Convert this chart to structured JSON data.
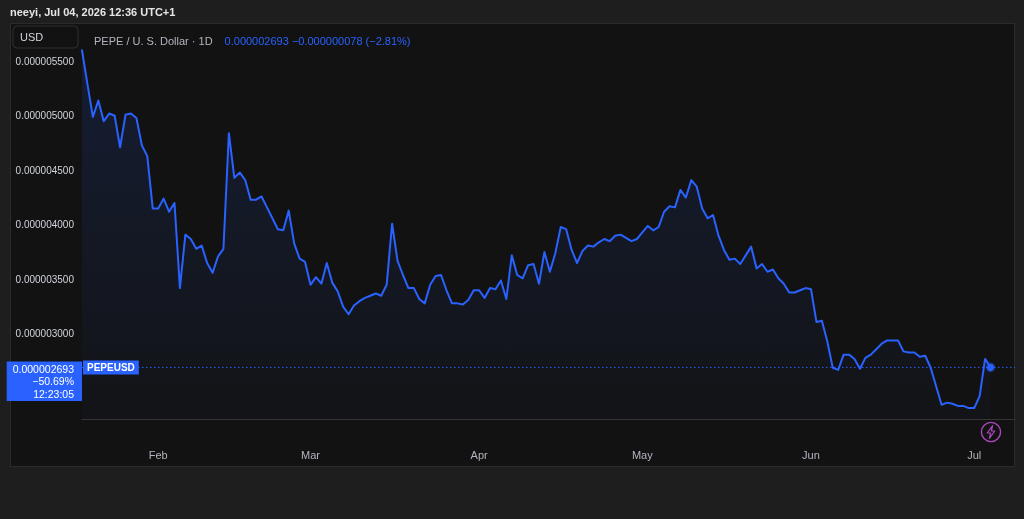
{
  "chart_data": {
    "type": "area",
    "title": "PEPE / U. S. Dollar · 1D",
    "subtitle": "0.000002693 −0.000000078 (−2.81%)",
    "ylabel": "USD",
    "annotations": [
      "neeyi, Jul 04, 2026 12:36 UTC+1",
      "0.000002693\n−50.69%\n12:23:05"
    ],
    "x": [
      "2026-01-18",
      "2026-01-19",
      "2026-01-20",
      "2026-01-21",
      "2026-01-22",
      "2026-01-23",
      "2026-01-24",
      "2026-01-25",
      "2026-01-26",
      "2026-01-27",
      "2026-01-28",
      "2026-01-29",
      "2026-01-30",
      "2026-01-31",
      "2026-02-01",
      "2026-02-02",
      "2026-02-03",
      "2026-02-04",
      "2026-02-05",
      "2026-02-06",
      "2026-02-07",
      "2026-02-08",
      "2026-02-09",
      "2026-02-10",
      "2026-02-11",
      "2026-02-12",
      "2026-02-13",
      "2026-02-14",
      "2026-02-15",
      "2026-02-16",
      "2026-02-17",
      "2026-02-18",
      "2026-02-19",
      "2026-02-20",
      "2026-02-21",
      "2026-02-22",
      "2026-02-23",
      "2026-02-24",
      "2026-02-25",
      "2026-02-26",
      "2026-02-27",
      "2026-02-28",
      "2026-03-01",
      "2026-03-02",
      "2026-03-03",
      "2026-03-04",
      "2026-03-05",
      "2026-03-06",
      "2026-03-07",
      "2026-03-08",
      "2026-03-09",
      "2026-03-10",
      "2026-03-11",
      "2026-03-12",
      "2026-03-13",
      "2026-03-14",
      "2026-03-15",
      "2026-03-16",
      "2026-03-17",
      "2026-03-18",
      "2026-03-19",
      "2026-03-20",
      "2026-03-21",
      "2026-03-22",
      "2026-03-23",
      "2026-03-24",
      "2026-03-25",
      "2026-03-26",
      "2026-03-27",
      "2026-03-28",
      "2026-03-29",
      "2026-03-30",
      "2026-03-31",
      "2026-04-01",
      "2026-04-02",
      "2026-04-03",
      "2026-04-04",
      "2026-04-05",
      "2026-04-06",
      "2026-04-07",
      "2026-04-08",
      "2026-04-09",
      "2026-04-10",
      "2026-04-11",
      "2026-04-12",
      "2026-04-13",
      "2026-04-14",
      "2026-04-15",
      "2026-04-16",
      "2026-04-17",
      "2026-04-18",
      "2026-04-19",
      "2026-04-20",
      "2026-04-21",
      "2026-04-22",
      "2026-04-23",
      "2026-04-24",
      "2026-04-25",
      "2026-04-26",
      "2026-04-27",
      "2026-04-28",
      "2026-04-29",
      "2026-04-30",
      "2026-05-01",
      "2026-05-02",
      "2026-05-03",
      "2026-05-04",
      "2026-05-05",
      "2026-05-06",
      "2026-05-07",
      "2026-05-08",
      "2026-05-09",
      "2026-05-10",
      "2026-05-11",
      "2026-05-12",
      "2026-05-13",
      "2026-05-14",
      "2026-05-15",
      "2026-05-16",
      "2026-05-17",
      "2026-05-18",
      "2026-05-19",
      "2026-05-20",
      "2026-05-21",
      "2026-05-22",
      "2026-05-23",
      "2026-05-24",
      "2026-05-25",
      "2026-05-26",
      "2026-05-27",
      "2026-05-28",
      "2026-05-29",
      "2026-05-30",
      "2026-05-31",
      "2026-06-01",
      "2026-06-02",
      "2026-06-03",
      "2026-06-04",
      "2026-06-05",
      "2026-06-06",
      "2026-06-07",
      "2026-06-08",
      "2026-06-09",
      "2026-06-10",
      "2026-06-11",
      "2026-06-12",
      "2026-06-13",
      "2026-06-14",
      "2026-06-15",
      "2026-06-16",
      "2026-06-17",
      "2026-06-18",
      "2026-06-19",
      "2026-06-20",
      "2026-06-21",
      "2026-06-22",
      "2026-06-23",
      "2026-06-24",
      "2026-06-25",
      "2026-06-26",
      "2026-06-27",
      "2026-06-28",
      "2026-06-29",
      "2026-06-30",
      "2026-07-01",
      "2026-07-02",
      "2026-07-03",
      "2026-07-04"
    ],
    "values": [
      5.6e-06,
      5.29e-06,
      4.99e-06,
      5.14e-06,
      4.95e-06,
      5.02e-06,
      5e-06,
      4.71e-06,
      5.01e-06,
      5.02e-06,
      4.98e-06,
      4.73e-06,
      4.63e-06,
      4.15e-06,
      4.15e-06,
      4.24e-06,
      4.12e-06,
      4.2e-06,
      3.42e-06,
      3.91e-06,
      3.87e-06,
      3.78e-06,
      3.81e-06,
      3.65e-06,
      3.56e-06,
      3.71e-06,
      3.78e-06,
      4.84e-06,
      4.43e-06,
      4.48e-06,
      4.41e-06,
      4.23e-06,
      4.23e-06,
      4.26e-06,
      4.16e-06,
      4.06e-06,
      3.96e-06,
      3.95e-06,
      4.13e-06,
      3.83e-06,
      3.69e-06,
      3.66e-06,
      3.45e-06,
      3.52e-06,
      3.46e-06,
      3.65e-06,
      3.47e-06,
      3.39e-06,
      3.25e-06,
      3.18e-06,
      3.26e-06,
      3.3e-06,
      3.33e-06,
      3.35e-06,
      3.37e-06,
      3.35e-06,
      3.45e-06,
      4.01e-06,
      3.67e-06,
      3.54e-06,
      3.42e-06,
      3.42e-06,
      3.32e-06,
      3.28e-06,
      3.45e-06,
      3.53e-06,
      3.54e-06,
      3.4e-06,
      3.28e-06,
      3.28e-06,
      3.27e-06,
      3.31e-06,
      3.4e-06,
      3.4e-06,
      3.33e-06,
      3.42e-06,
      3.41e-06,
      3.49e-06,
      3.32e-06,
      3.72e-06,
      3.54e-06,
      3.51e-06,
      3.63e-06,
      3.64e-06,
      3.46e-06,
      3.75e-06,
      3.57e-06,
      3.74e-06,
      3.98e-06,
      3.96e-06,
      3.77e-06,
      3.65e-06,
      3.76e-06,
      3.81e-06,
      3.8e-06,
      3.84e-06,
      3.87e-06,
      3.85e-06,
      3.9e-06,
      3.91e-06,
      3.88e-06,
      3.85e-06,
      3.87e-06,
      3.93e-06,
      3.99e-06,
      3.95e-06,
      3.98e-06,
      4.12e-06,
      4.17e-06,
      4.16e-06,
      4.32e-06,
      4.25e-06,
      4.41e-06,
      4.35e-06,
      4.15e-06,
      4.06e-06,
      4.09e-06,
      3.9e-06,
      3.77e-06,
      3.68e-06,
      3.69e-06,
      3.64e-06,
      3.72e-06,
      3.8e-06,
      3.6e-06,
      3.64e-06,
      3.57e-06,
      3.59e-06,
      3.51e-06,
      3.46e-06,
      3.38e-06,
      3.38e-06,
      3.4e-06,
      3.42e-06,
      3.41e-06,
      3.11e-06,
      3.12e-06,
      2.93e-06,
      2.69e-06,
      2.67e-06,
      2.81e-06,
      2.81e-06,
      2.77e-06,
      2.68e-06,
      2.78e-06,
      2.81e-06,
      2.86e-06,
      2.91e-06,
      2.94e-06,
      2.94e-06,
      2.94e-06,
      2.84e-06,
      2.83e-06,
      2.83e-06,
      2.79e-06,
      2.8e-06,
      2.69e-06,
      2.52e-06,
      2.35e-06,
      2.37e-06,
      2.36e-06,
      2.34e-06,
      2.34e-06,
      2.32e-06,
      2.32e-06,
      2.43e-06,
      2.771e-06,
      2.693e-06
    ],
    "color": "#2962ff",
    "marker": "none",
    "xlim": [
      "2026-01-18",
      "2026-07-08T12:00"
    ],
    "xticks": [
      {
        "value": "2026-02-01",
        "label": "Feb"
      },
      {
        "value": "2026-03-01",
        "label": "Mar"
      },
      {
        "value": "2026-04-01",
        "label": "Apr"
      },
      {
        "value": "2026-05-01",
        "label": "May"
      },
      {
        "value": "2026-06-01",
        "label": "Jun"
      },
      {
        "value": "2026-07-01",
        "label": "Jul"
      }
    ],
    "ylim": [
      2.22e-06,
      5.85e-06
    ],
    "yticks": [
      {
        "value": 3e-06,
        "label": "0.000003000"
      },
      {
        "value": 3.5e-06,
        "label": "0.000003500"
      },
      {
        "value": 4e-06,
        "label": "0.000004000"
      },
      {
        "value": 4.5e-06,
        "label": "0.000004500"
      },
      {
        "value": 5e-06,
        "label": "0.000005000"
      },
      {
        "value": 5.5e-06,
        "label": "0.000005500"
      }
    ],
    "ref_lines": [
      {
        "axis": "y",
        "value": 2.693e-06,
        "label": "PEPEUSD",
        "color": "#2962ff",
        "line_style": "dotted"
      }
    ]
  }
}
